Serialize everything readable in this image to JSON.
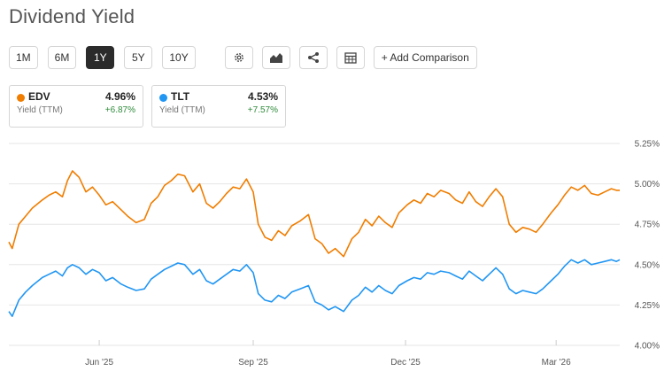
{
  "page": {
    "title": "Dividend Yield"
  },
  "toolbar": {
    "timeframes": [
      {
        "label": "1M",
        "active": false
      },
      {
        "label": "6M",
        "active": false
      },
      {
        "label": "1Y",
        "active": true
      },
      {
        "label": "5Y",
        "active": false
      },
      {
        "label": "10Y",
        "active": false
      }
    ],
    "icons": [
      "gear-icon",
      "chart-type-icon",
      "share-icon",
      "table-icon"
    ],
    "add_comparison_label": "+ Add Comparison"
  },
  "legend": [
    {
      "ticker": "EDV",
      "value": "4.96%",
      "sub": "Yield (TTM)",
      "change": "+6.87%",
      "color": "#f07d00"
    },
    {
      "ticker": "TLT",
      "value": "4.53%",
      "sub": "Yield (TTM)",
      "change": "+7.57%",
      "color": "#2196f3"
    }
  ],
  "chart_data": {
    "type": "line",
    "title": "Dividend Yield",
    "x_tick_labels": [
      "Jun '25",
      "Sep '25",
      "Dec '25",
      "Mar '26"
    ],
    "y_tick_labels": [
      "4.00%",
      "4.25%",
      "4.50%",
      "4.75%",
      "5.00%",
      "5.25%"
    ],
    "x_range": [
      "2025-04-08",
      "2026-04-08"
    ],
    "ylim": [
      4.0,
      5.25
    ],
    "grid": true,
    "y_axis_side": "right",
    "series": [
      {
        "name": "EDV",
        "color": "#f07d00",
        "points": [
          [
            "2025-04-08",
            4.64
          ],
          [
            "2025-04-10",
            4.6
          ],
          [
            "2025-04-14",
            4.75
          ],
          [
            "2025-04-18",
            4.8
          ],
          [
            "2025-04-22",
            4.85
          ],
          [
            "2025-04-28",
            4.9
          ],
          [
            "2025-05-02",
            4.93
          ],
          [
            "2025-05-06",
            4.95
          ],
          [
            "2025-05-10",
            4.92
          ],
          [
            "2025-05-13",
            5.02
          ],
          [
            "2025-05-16",
            5.08
          ],
          [
            "2025-05-20",
            5.04
          ],
          [
            "2025-05-24",
            4.95
          ],
          [
            "2025-05-28",
            4.98
          ],
          [
            "2025-06-01",
            4.93
          ],
          [
            "2025-06-05",
            4.87
          ],
          [
            "2025-06-09",
            4.89
          ],
          [
            "2025-06-14",
            4.84
          ],
          [
            "2025-06-18",
            4.8
          ],
          [
            "2025-06-23",
            4.76
          ],
          [
            "2025-06-28",
            4.78
          ],
          [
            "2025-07-02",
            4.88
          ],
          [
            "2025-07-06",
            4.92
          ],
          [
            "2025-07-10",
            4.99
          ],
          [
            "2025-07-14",
            5.02
          ],
          [
            "2025-07-18",
            5.06
          ],
          [
            "2025-07-22",
            5.05
          ],
          [
            "2025-07-27",
            4.95
          ],
          [
            "2025-07-31",
            5.0
          ],
          [
            "2025-08-04",
            4.88
          ],
          [
            "2025-08-08",
            4.85
          ],
          [
            "2025-08-12",
            4.89
          ],
          [
            "2025-08-16",
            4.94
          ],
          [
            "2025-08-20",
            4.98
          ],
          [
            "2025-08-24",
            4.97
          ],
          [
            "2025-08-28",
            5.03
          ],
          [
            "2025-09-01",
            4.95
          ],
          [
            "2025-09-04",
            4.75
          ],
          [
            "2025-09-08",
            4.67
          ],
          [
            "2025-09-12",
            4.65
          ],
          [
            "2025-09-16",
            4.71
          ],
          [
            "2025-09-20",
            4.68
          ],
          [
            "2025-09-24",
            4.74
          ],
          [
            "2025-09-29",
            4.77
          ],
          [
            "2025-10-04",
            4.81
          ],
          [
            "2025-10-08",
            4.66
          ],
          [
            "2025-10-12",
            4.63
          ],
          [
            "2025-10-16",
            4.57
          ],
          [
            "2025-10-20",
            4.6
          ],
          [
            "2025-10-25",
            4.55
          ],
          [
            "2025-10-30",
            4.66
          ],
          [
            "2025-11-03",
            4.7
          ],
          [
            "2025-11-07",
            4.78
          ],
          [
            "2025-11-11",
            4.74
          ],
          [
            "2025-11-15",
            4.8
          ],
          [
            "2025-11-19",
            4.76
          ],
          [
            "2025-11-23",
            4.73
          ],
          [
            "2025-11-27",
            4.82
          ],
          [
            "2025-12-02",
            4.87
          ],
          [
            "2025-12-06",
            4.9
          ],
          [
            "2025-12-10",
            4.88
          ],
          [
            "2025-12-14",
            4.94
          ],
          [
            "2025-12-18",
            4.92
          ],
          [
            "2025-12-22",
            4.96
          ],
          [
            "2025-12-27",
            4.94
          ],
          [
            "2025-12-31",
            4.9
          ],
          [
            "2026-01-04",
            4.88
          ],
          [
            "2026-01-08",
            4.95
          ],
          [
            "2026-01-12",
            4.89
          ],
          [
            "2026-01-16",
            4.86
          ],
          [
            "2026-01-20",
            4.92
          ],
          [
            "2026-01-24",
            4.97
          ],
          [
            "2026-01-28",
            4.92
          ],
          [
            "2026-02-01",
            4.75
          ],
          [
            "2026-02-05",
            4.7
          ],
          [
            "2026-02-09",
            4.73
          ],
          [
            "2026-02-13",
            4.72
          ],
          [
            "2026-02-17",
            4.7
          ],
          [
            "2026-02-21",
            4.75
          ],
          [
            "2026-02-26",
            4.82
          ],
          [
            "2026-03-02",
            4.87
          ],
          [
            "2026-03-06",
            4.93
          ],
          [
            "2026-03-10",
            4.98
          ],
          [
            "2026-03-14",
            4.96
          ],
          [
            "2026-03-18",
            4.99
          ],
          [
            "2026-03-22",
            4.94
          ],
          [
            "2026-03-26",
            4.93
          ],
          [
            "2026-03-30",
            4.95
          ],
          [
            "2026-04-03",
            4.97
          ],
          [
            "2026-04-06",
            4.96
          ],
          [
            "2026-04-08",
            4.96
          ]
        ]
      },
      {
        "name": "TLT",
        "color": "#2196f3",
        "points": [
          [
            "2025-04-08",
            4.21
          ],
          [
            "2025-04-10",
            4.18
          ],
          [
            "2025-04-14",
            4.28
          ],
          [
            "2025-04-18",
            4.33
          ],
          [
            "2025-04-22",
            4.37
          ],
          [
            "2025-04-28",
            4.42
          ],
          [
            "2025-05-02",
            4.44
          ],
          [
            "2025-05-06",
            4.46
          ],
          [
            "2025-05-10",
            4.43
          ],
          [
            "2025-05-13",
            4.48
          ],
          [
            "2025-05-16",
            4.5
          ],
          [
            "2025-05-20",
            4.48
          ],
          [
            "2025-05-24",
            4.44
          ],
          [
            "2025-05-28",
            4.47
          ],
          [
            "2025-06-01",
            4.45
          ],
          [
            "2025-06-05",
            4.4
          ],
          [
            "2025-06-09",
            4.42
          ],
          [
            "2025-06-14",
            4.38
          ],
          [
            "2025-06-18",
            4.36
          ],
          [
            "2025-06-23",
            4.34
          ],
          [
            "2025-06-28",
            4.35
          ],
          [
            "2025-07-02",
            4.41
          ],
          [
            "2025-07-06",
            4.44
          ],
          [
            "2025-07-10",
            4.47
          ],
          [
            "2025-07-14",
            4.49
          ],
          [
            "2025-07-18",
            4.51
          ],
          [
            "2025-07-22",
            4.5
          ],
          [
            "2025-07-27",
            4.44
          ],
          [
            "2025-07-31",
            4.47
          ],
          [
            "2025-08-04",
            4.4
          ],
          [
            "2025-08-08",
            4.38
          ],
          [
            "2025-08-12",
            4.41
          ],
          [
            "2025-08-16",
            4.44
          ],
          [
            "2025-08-20",
            4.47
          ],
          [
            "2025-08-24",
            4.46
          ],
          [
            "2025-08-28",
            4.5
          ],
          [
            "2025-09-01",
            4.45
          ],
          [
            "2025-09-04",
            4.32
          ],
          [
            "2025-09-08",
            4.28
          ],
          [
            "2025-09-12",
            4.27
          ],
          [
            "2025-09-16",
            4.31
          ],
          [
            "2025-09-20",
            4.29
          ],
          [
            "2025-09-24",
            4.33
          ],
          [
            "2025-09-29",
            4.35
          ],
          [
            "2025-10-04",
            4.37
          ],
          [
            "2025-10-08",
            4.27
          ],
          [
            "2025-10-12",
            4.25
          ],
          [
            "2025-10-16",
            4.22
          ],
          [
            "2025-10-20",
            4.24
          ],
          [
            "2025-10-25",
            4.21
          ],
          [
            "2025-10-30",
            4.28
          ],
          [
            "2025-11-03",
            4.31
          ],
          [
            "2025-11-07",
            4.36
          ],
          [
            "2025-11-11",
            4.33
          ],
          [
            "2025-11-15",
            4.37
          ],
          [
            "2025-11-19",
            4.34
          ],
          [
            "2025-11-23",
            4.32
          ],
          [
            "2025-11-27",
            4.37
          ],
          [
            "2025-12-02",
            4.4
          ],
          [
            "2025-12-06",
            4.42
          ],
          [
            "2025-12-10",
            4.41
          ],
          [
            "2025-12-14",
            4.45
          ],
          [
            "2025-12-18",
            4.44
          ],
          [
            "2025-12-22",
            4.46
          ],
          [
            "2025-12-27",
            4.45
          ],
          [
            "2025-12-31",
            4.43
          ],
          [
            "2026-01-04",
            4.41
          ],
          [
            "2026-01-08",
            4.46
          ],
          [
            "2026-01-12",
            4.43
          ],
          [
            "2026-01-16",
            4.4
          ],
          [
            "2026-01-20",
            4.44
          ],
          [
            "2026-01-24",
            4.48
          ],
          [
            "2026-01-28",
            4.44
          ],
          [
            "2026-02-01",
            4.35
          ],
          [
            "2026-02-05",
            4.32
          ],
          [
            "2026-02-09",
            4.34
          ],
          [
            "2026-02-13",
            4.33
          ],
          [
            "2026-02-17",
            4.32
          ],
          [
            "2026-02-21",
            4.35
          ],
          [
            "2026-02-26",
            4.4
          ],
          [
            "2026-03-02",
            4.44
          ],
          [
            "2026-03-06",
            4.49
          ],
          [
            "2026-03-10",
            4.53
          ],
          [
            "2026-03-14",
            4.51
          ],
          [
            "2026-03-18",
            4.53
          ],
          [
            "2026-03-22",
            4.5
          ],
          [
            "2026-03-26",
            4.51
          ],
          [
            "2026-03-30",
            4.52
          ],
          [
            "2026-04-03",
            4.53
          ],
          [
            "2026-04-06",
            4.52
          ],
          [
            "2026-04-08",
            4.53
          ]
        ]
      }
    ],
    "x_ticks": [
      "2025-06-01",
      "2025-09-01",
      "2025-12-01",
      "2026-03-01"
    ]
  }
}
